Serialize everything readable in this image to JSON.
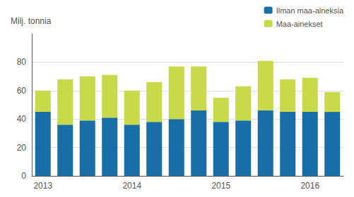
{
  "chart_data": {
    "type": "bar",
    "stacked": true,
    "ylabel": "Milj. tonnia",
    "categories": [
      "2013",
      null,
      null,
      null,
      "2014",
      null,
      null,
      null,
      "2015",
      null,
      null,
      null,
      "2016",
      null
    ],
    "series": [
      {
        "name": "Ilman maa-aineksia",
        "color": "#1a6ea8",
        "values": [
          45,
          36,
          39,
          41,
          36,
          38,
          40,
          46,
          38,
          39,
          46,
          45,
          45,
          45
        ]
      },
      {
        "name": "Maa-ainekset",
        "color": "#c8d94a",
        "values": [
          15,
          32,
          31,
          30,
          24,
          28,
          37,
          31,
          17,
          24,
          35,
          23,
          24,
          14
        ]
      }
    ],
    "ylim": [
      0,
      100
    ],
    "yticks": [
      0,
      20,
      40,
      60,
      80
    ],
    "grid": true,
    "legend": "upper right"
  }
}
